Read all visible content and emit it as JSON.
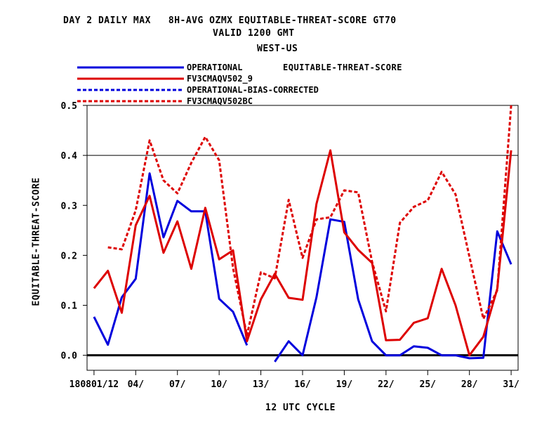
{
  "header": {
    "title_line1": "DAY 2 DAILY MAX   8H-AVG OZMX EQUITABLE-THREAT-SCORE GT70",
    "title_line2": "VALID 1200 GMT",
    "title_line3": "WEST-US"
  },
  "legend": {
    "title": "EQUITABLE-THREAT-SCORE",
    "items": [
      {
        "label": "OPERATIONAL",
        "color": "#0000dd",
        "dash": "solid"
      },
      {
        "label": "FV3CMAQV502_9",
        "color": "#dd0000",
        "dash": "solid"
      },
      {
        "label": "OPERATIONAL-BIAS-CORRECTED",
        "color": "#0000dd",
        "dash": "dashed"
      },
      {
        "label": "FV3CMAQV502BC",
        "color": "#dd0000",
        "dash": "dashed"
      }
    ]
  },
  "chart_data": {
    "type": "line",
    "title": "DAY 2 DAILY MAX   8H-AVG OZMX EQUITABLE-THREAT-SCORE GT70",
    "xlabel": "12 UTC CYCLE",
    "ylabel": "EQUITABLE-THREAT-SCORE",
    "xlim": [
      0.5,
      31.5
    ],
    "ylim": [
      -0.03,
      0.5
    ],
    "x_ticks": [
      {
        "x": 1,
        "label": "180801/12"
      },
      {
        "x": 4,
        "label": "04/"
      },
      {
        "x": 7,
        "label": "07/"
      },
      {
        "x": 10,
        "label": "10/"
      },
      {
        "x": 13,
        "label": "13/"
      },
      {
        "x": 16,
        "label": "16/"
      },
      {
        "x": 19,
        "label": "19/"
      },
      {
        "x": 22,
        "label": "22/"
      },
      {
        "x": 25,
        "label": "25/"
      },
      {
        "x": 28,
        "label": "28/"
      },
      {
        "x": 31,
        "label": "31/"
      }
    ],
    "y_ticks": [
      0.0,
      0.1,
      0.2,
      0.3,
      0.4,
      0.5
    ],
    "y_tick_labels": [
      "0.0",
      "0.1",
      "0.2",
      "0.3",
      "0.4",
      "0.5"
    ],
    "reference_lines": [
      0.4
    ],
    "zero_line": 0.0,
    "series": [
      {
        "name": "OPERATIONAL",
        "color": "#0000dd",
        "dash": "solid",
        "x": [
          1,
          2,
          3,
          4,
          5,
          6,
          7,
          8,
          9,
          10,
          11,
          12,
          null,
          14,
          15,
          16,
          17,
          18,
          19,
          20,
          21,
          22,
          23,
          24,
          25,
          26,
          27,
          28,
          29,
          30,
          31
        ],
        "values": [
          0.077,
          0.021,
          0.116,
          0.153,
          0.364,
          0.236,
          0.309,
          0.288,
          0.288,
          0.113,
          0.087,
          0.02,
          null,
          -0.013,
          0.028,
          0.0,
          0.116,
          0.272,
          0.267,
          0.112,
          0.028,
          0.0,
          0.0,
          0.018,
          0.015,
          0.0,
          0.0,
          -0.006,
          -0.005,
          0.248,
          0.182
        ]
      },
      {
        "name": "FV3CMAQV502_9",
        "color": "#dd0000",
        "dash": "solid",
        "x": [
          1,
          2,
          3,
          4,
          5,
          6,
          7,
          8,
          9,
          10,
          11,
          12,
          13,
          14,
          15,
          16,
          17,
          18,
          19,
          20,
          21,
          22,
          23,
          24,
          25,
          26,
          27,
          28,
          29,
          30,
          31
        ],
        "values": [
          0.134,
          0.169,
          0.085,
          0.26,
          0.319,
          0.205,
          0.268,
          0.173,
          0.295,
          0.192,
          0.21,
          0.028,
          0.112,
          0.163,
          0.115,
          0.111,
          0.303,
          0.41,
          0.246,
          0.211,
          0.185,
          0.03,
          0.031,
          0.065,
          0.074,
          0.173,
          0.1,
          0.0,
          0.037,
          0.133,
          0.41
        ]
      },
      {
        "name": "OPERATIONAL-BIAS-CORRECTED",
        "color": "#0000dd",
        "dash": "dashed",
        "x": [],
        "values": []
      },
      {
        "name": "FV3CMAQV502BC",
        "color": "#dd0000",
        "dash": "dashed",
        "x": [
          2,
          3,
          4,
          5,
          6,
          7,
          8,
          9,
          10,
          11,
          12,
          13,
          14,
          15,
          16,
          17,
          18,
          19,
          20,
          21,
          22,
          23,
          24,
          25,
          26,
          27,
          28,
          29,
          30,
          31
        ],
        "values": [
          0.216,
          0.212,
          0.29,
          0.43,
          0.35,
          0.324,
          0.385,
          0.437,
          0.39,
          0.174,
          0.04,
          0.166,
          0.154,
          0.311,
          0.195,
          0.272,
          0.276,
          0.33,
          0.326,
          0.187,
          0.088,
          0.265,
          0.297,
          0.31,
          0.367,
          0.322,
          0.197,
          0.073,
          0.13,
          0.5
        ]
      }
    ]
  }
}
